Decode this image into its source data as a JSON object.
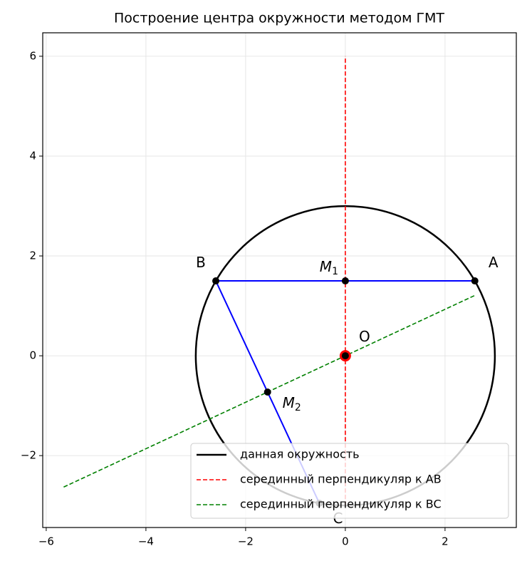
{
  "chart_data": {
    "type": "geometry",
    "title": "Построение центра окружности методом ГМТ",
    "xlim": [
      -6.07,
      3.43
    ],
    "ylim": [
      -3.44,
      6.47
    ],
    "xticks": [
      {
        "value": -6,
        "label": "−6"
      },
      {
        "value": -4,
        "label": "−4"
      },
      {
        "value": -2,
        "label": "−2"
      },
      0,
      2
    ],
    "yticks": [
      {
        "value": -2,
        "label": "−2"
      },
      0,
      2,
      4,
      6
    ],
    "grid": true,
    "legend": "lower right",
    "circle": {
      "name": "данная окружность",
      "color": "#000000",
      "center": [
        0,
        0
      ],
      "radius": 3
    },
    "series": [
      {
        "name": "серединный перпендикуляр к AB",
        "color": "#ff0000",
        "x": [
          0,
          0
        ],
        "values": [
          -3,
          6
        ]
      },
      {
        "name": "серединный перпендикуляр к BC",
        "color": "#008000",
        "x": [
          -5.65,
          2.6
        ],
        "values": [
          -2.63,
          1.21
        ]
      }
    ],
    "segments": [
      {
        "color": "#0000ff",
        "x": [
          2.598,
          -2.598
        ],
        "values": [
          1.5,
          1.5
        ]
      },
      {
        "color": "#0000ff",
        "x": [
          -2.598,
          -0.521
        ],
        "values": [
          1.5,
          -2.954
        ]
      }
    ],
    "points": [
      {
        "label": "A",
        "x": 2.598,
        "y": 1.5
      },
      {
        "label": "B",
        "x": -2.598,
        "y": 1.5
      },
      {
        "label": "C",
        "x": -0.521,
        "y": -2.954
      },
      {
        "label": "M",
        "sub": "1",
        "x": 0,
        "y": 1.5
      },
      {
        "label": "M",
        "sub": "2",
        "x": -1.56,
        "y": -0.727
      },
      {
        "label": "O",
        "x": 0,
        "y": 0,
        "ring": "#ff0000"
      }
    ]
  }
}
